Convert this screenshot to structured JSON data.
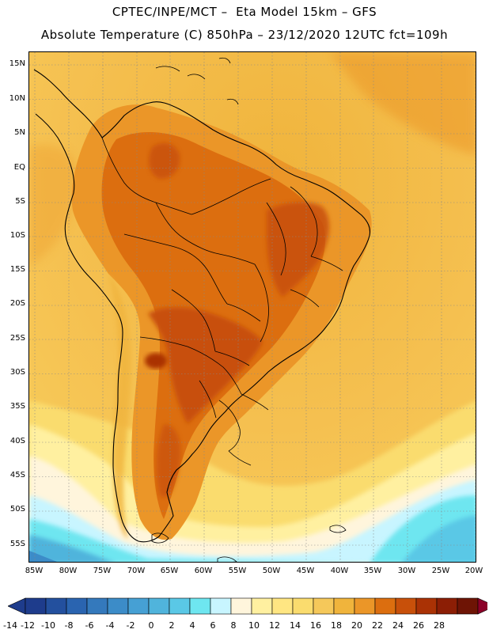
{
  "header": {
    "line1": "CPTEC/INPE/MCT –  Eta Model 15km – GFS",
    "line2": "Absolute Temperature (C) 850hPa – 23/12/2020 12UTC fct=109h"
  },
  "map": {
    "region": "South America",
    "lat_ticks": [
      "15N",
      "10N",
      "5N",
      "EQ",
      "5S",
      "10S",
      "15S",
      "20S",
      "25S",
      "30S",
      "35S",
      "40S",
      "45S",
      "50S",
      "55S"
    ],
    "lon_ticks": [
      "85W",
      "80W",
      "75W",
      "70W",
      "65W",
      "60W",
      "55W",
      "50W",
      "45W",
      "40W",
      "35W",
      "30W",
      "25W",
      "20W"
    ]
  },
  "colorbar": {
    "labels": [
      "-14",
      "-12",
      "-10",
      "-8",
      "-6",
      "-4",
      "-2",
      "0",
      "2",
      "4",
      "6",
      "8",
      "10",
      "12",
      "14",
      "16",
      "18",
      "20",
      "22",
      "24",
      "26",
      "28"
    ],
    "colors": [
      "#1e3c8c",
      "#23509e",
      "#2a64b0",
      "#3479bc",
      "#3c8cc8",
      "#46a0d4",
      "#50b4dc",
      "#5ac8e6",
      "#6ee6f0",
      "#c8f5ff",
      "#fff5dc",
      "#fff0a0",
      "#ffe682",
      "#fadc6e",
      "#f5c85a",
      "#f0b43c",
      "#eb9628",
      "#dc6e0f",
      "#c8500a",
      "#aa3205",
      "#8c1e05",
      "#6e1405",
      "#8c0028"
    ],
    "min_color": "#1e3c8c",
    "max_color": "#8c0028"
  }
}
